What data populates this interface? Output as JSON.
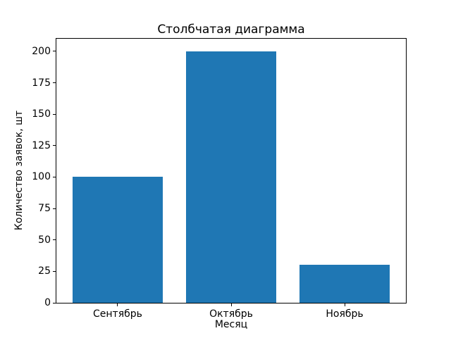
{
  "chart_data": {
    "type": "bar",
    "title": "Столбчатая диаграмма",
    "xlabel": "Месяц",
    "ylabel": "Количество заявок, шт",
    "categories": [
      "Сентябрь",
      "Октябрь",
      "Ноябрь"
    ],
    "values": [
      100,
      200,
      30
    ],
    "yticks": [
      0,
      25,
      50,
      75,
      100,
      125,
      150,
      175,
      200
    ],
    "ylim": [
      0,
      210
    ],
    "xlim": [
      -0.54,
      2.54
    ],
    "bar_width": 0.8,
    "bar_color": "#1f77b4",
    "background_color": "#ffffff",
    "text_color": "#000000",
    "grid": false,
    "legend_position": "none"
  }
}
